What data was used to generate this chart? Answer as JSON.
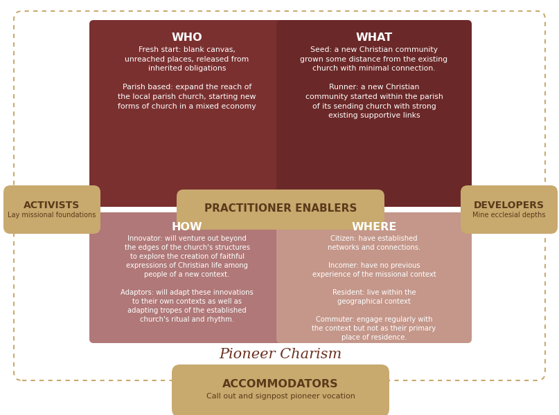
{
  "bg_color": "#ffffff",
  "outer_border_color": "#c8a96e",
  "quadrant_colors": {
    "who": "#7b3030",
    "what": "#6b2828",
    "how": "#b07878",
    "where": "#c4978a"
  },
  "pill_color": "#c8a96e",
  "pill_text_color": "#5a3a1a",
  "quadrant_text_color": "#ffffff",
  "pioneer_charism_color": "#6b3020",
  "title": "Pioneer Charism",
  "activists_label": "ACTIVISTS",
  "activists_sub": "Lay missional foundations",
  "developers_label": "DEVELOPERS",
  "developers_sub": "Mine ecclesial depths",
  "practitioner_label": "PRACTITIONER ENABLERS",
  "accommodators_label": "ACCOMMODATORS",
  "accommodators_sub": "Call out and signpost pioneer vocation",
  "who_title": "WHO",
  "what_title": "WHAT",
  "how_title": "HOW",
  "where_title": "WHERE"
}
